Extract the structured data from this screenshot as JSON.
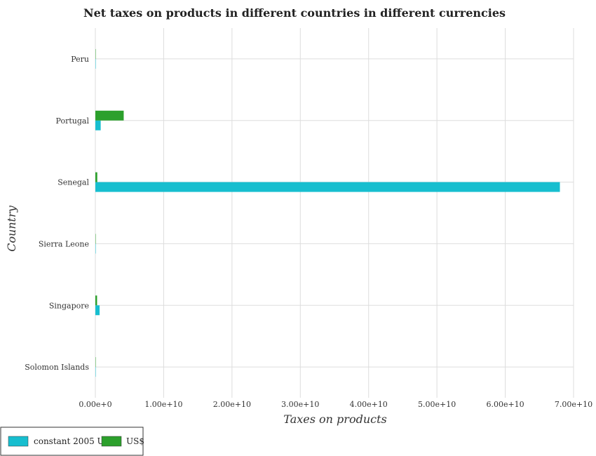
{
  "chart_data": {
    "type": "bar",
    "orientation": "horizontal",
    "title": "Net taxes on products in different countries in different currencies",
    "xlabel": "Taxes on products",
    "ylabel": "Country",
    "categories": [
      "Peru",
      "Portugal",
      "Senegal",
      "Sierra Leone",
      "Singapore",
      "Solomon Islands"
    ],
    "series": [
      {
        "name": "constant 2005 US$",
        "color": "#17becf",
        "values": [
          1500000,
          780000000,
          68000000000,
          10000000,
          620000000,
          8000000
        ]
      },
      {
        "name": "US$",
        "color": "#2ca02c",
        "values": [
          500000,
          4150000000,
          280000000,
          5000000,
          250000000,
          3000000
        ]
      }
    ],
    "xlim": [
      0,
      70000000000
    ],
    "xticks": [
      {
        "value": 0,
        "label": "0.00e+0"
      },
      {
        "value": 10000000000,
        "label": "1.00e+10"
      },
      {
        "value": 20000000000,
        "label": "2.00e+10"
      },
      {
        "value": 30000000000,
        "label": "3.00e+10"
      },
      {
        "value": 40000000000,
        "label": "4.00e+10"
      },
      {
        "value": 50000000000,
        "label": "5.00e+10"
      },
      {
        "value": 60000000000,
        "label": "6.00e+10"
      },
      {
        "value": 70000000000,
        "label": "7.00e+10"
      }
    ],
    "grid": true,
    "legend": "bottom-left"
  }
}
